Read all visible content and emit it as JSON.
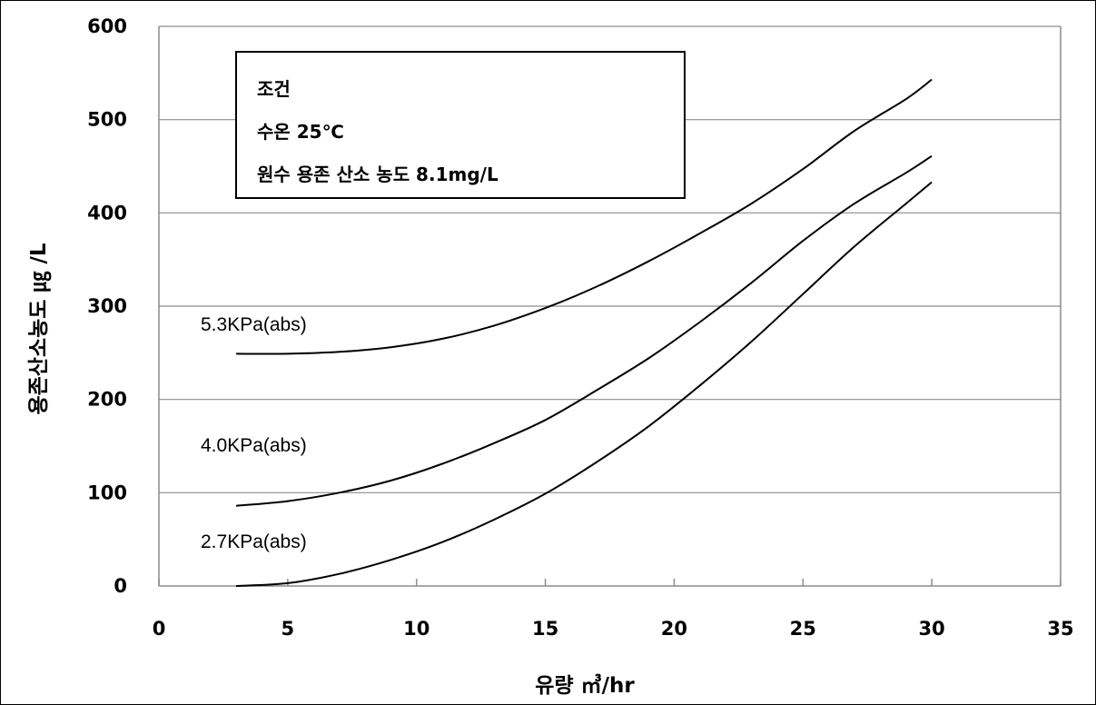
{
  "chart_data": {
    "type": "line",
    "xlabel": "유량 ㎥/hr",
    "ylabel": "용존산소농도 ㎍ /L",
    "xlim": [
      0,
      35
    ],
    "ylim": [
      0,
      600
    ],
    "xticks": [
      "0",
      "5",
      "10",
      "15",
      "20",
      "25",
      "30",
      "35"
    ],
    "yticks": [
      "0",
      "100",
      "200",
      "300",
      "400",
      "500",
      "600"
    ],
    "grid": "horizontal",
    "annotation_lines": [
      "조건",
      "수온 25℃",
      "원수 용존 산소 농도 8.1mg/L"
    ],
    "series": [
      {
        "name": "5.3KPa(abs)",
        "x": [
          3,
          5,
          7,
          9,
          11,
          13,
          15,
          17,
          19,
          21,
          23,
          25,
          27,
          29,
          30
        ],
        "values": [
          249,
          249,
          251,
          256,
          265,
          279,
          298,
          321,
          348,
          378,
          410,
          447,
          488,
          522,
          543
        ]
      },
      {
        "name": "4.0KPa(abs)",
        "x": [
          3,
          5,
          7,
          9,
          11,
          13,
          15,
          17,
          19,
          21,
          23,
          25,
          27,
          29,
          30
        ],
        "values": [
          86,
          91,
          100,
          113,
          131,
          153,
          178,
          210,
          244,
          283,
          325,
          370,
          410,
          443,
          461
        ]
      },
      {
        "name": "2.7KPa(abs)",
        "x": [
          3,
          5,
          7,
          9,
          11,
          13,
          15,
          17,
          19,
          21,
          23,
          25,
          27,
          29,
          30
        ],
        "values": [
          0,
          3,
          13,
          28,
          47,
          71,
          99,
          133,
          171,
          215,
          262,
          313,
          364,
          410,
          433
        ]
      }
    ]
  }
}
